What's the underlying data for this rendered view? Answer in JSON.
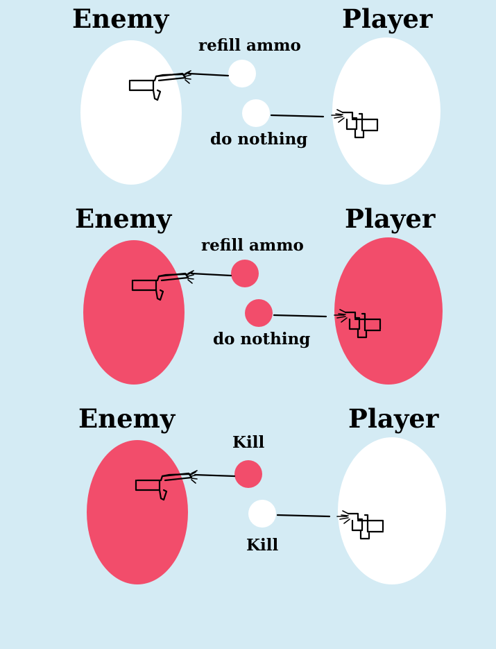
{
  "colors": {
    "background": "#d4ebf4",
    "white": "#ffffff",
    "red": "#f24d6b"
  },
  "panels": [
    {
      "left_label": "Enemy",
      "right_label": "Player",
      "enemy_color": "#ffffff",
      "player_color": "#ffffff",
      "top_choice": {
        "label": "refill ammo",
        "color": "#ffffff"
      },
      "bottom_choice": {
        "label": "do nothing",
        "color": "#ffffff"
      }
    },
    {
      "left_label": "Enemy",
      "right_label": "Player",
      "enemy_color": "#f24d6b",
      "player_color": "#f24d6b",
      "top_choice": {
        "label": "refill ammo",
        "color": "#f24d6b"
      },
      "bottom_choice": {
        "label": "do nothing",
        "color": "#f24d6b"
      }
    },
    {
      "left_label": "Enemy",
      "right_label": "Player",
      "enemy_color": "#f24d6b",
      "player_color": "#ffffff",
      "top_choice": {
        "label": "Kill",
        "color": "#f24d6b"
      },
      "bottom_choice": {
        "label": "Kill",
        "color": "#ffffff"
      }
    }
  ]
}
